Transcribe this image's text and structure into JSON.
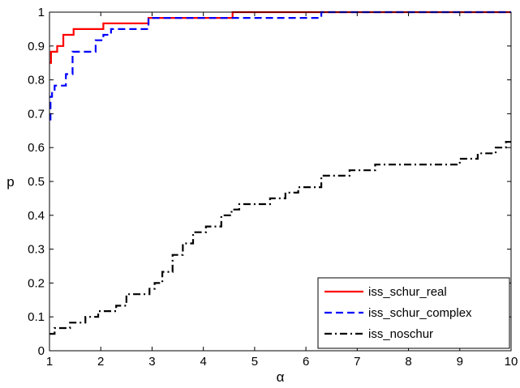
{
  "chart_data": {
    "type": "line",
    "title": "",
    "xlabel": "α",
    "ylabel": "p",
    "xlim": [
      1,
      10
    ],
    "ylim": [
      0,
      1
    ],
    "xticks": [
      1,
      2,
      3,
      4,
      5,
      6,
      7,
      8,
      9,
      10
    ],
    "yticks": [
      0,
      0.1,
      0.2,
      0.3,
      0.4,
      0.5,
      0.6,
      0.7,
      0.8,
      0.9,
      1
    ],
    "step": true,
    "grid": false,
    "legend_position": "bottom-right",
    "series": [
      {
        "name": "iss_schur_real",
        "color": "#ff0000",
        "dash": "solid",
        "x": [
          1,
          1.03,
          1.08,
          1.15,
          1.27,
          1.47,
          2.05,
          2.93,
          4.57,
          10
        ],
        "y": [
          0.85,
          0.883,
          0.883,
          0.9,
          0.933,
          0.95,
          0.967,
          0.983,
          1.0,
          1.0
        ]
      },
      {
        "name": "iss_schur_complex",
        "color": "#0000ff",
        "dash": "dash",
        "x": [
          1,
          1.02,
          1.05,
          1.1,
          1.17,
          1.32,
          1.45,
          1.9,
          2.05,
          2.2,
          2.93,
          6.3,
          10
        ],
        "y": [
          0.683,
          0.75,
          0.767,
          0.783,
          0.783,
          0.817,
          0.883,
          0.917,
          0.933,
          0.95,
          0.983,
          1.0,
          1.0
        ]
      },
      {
        "name": "iss_noschur",
        "color": "#000000",
        "dash": "dashdot",
        "x": [
          1,
          1.1,
          1.4,
          1.7,
          1.95,
          2.3,
          2.5,
          2.95,
          3.05,
          3.2,
          3.4,
          3.6,
          3.8,
          4.05,
          4.35,
          4.55,
          4.7,
          4.95,
          5.3,
          5.6,
          5.85,
          6.3,
          6.85,
          7.35,
          7.5,
          8.0,
          9.0,
          9.35,
          9.7,
          9.9,
          10
        ],
        "y": [
          0.05,
          0.067,
          0.083,
          0.1,
          0.117,
          0.133,
          0.167,
          0.183,
          0.2,
          0.233,
          0.283,
          0.317,
          0.35,
          0.367,
          0.4,
          0.417,
          0.433,
          0.433,
          0.45,
          0.467,
          0.483,
          0.517,
          0.533,
          0.55,
          0.55,
          0.55,
          0.567,
          0.583,
          0.6,
          0.617,
          0.617
        ]
      }
    ]
  }
}
